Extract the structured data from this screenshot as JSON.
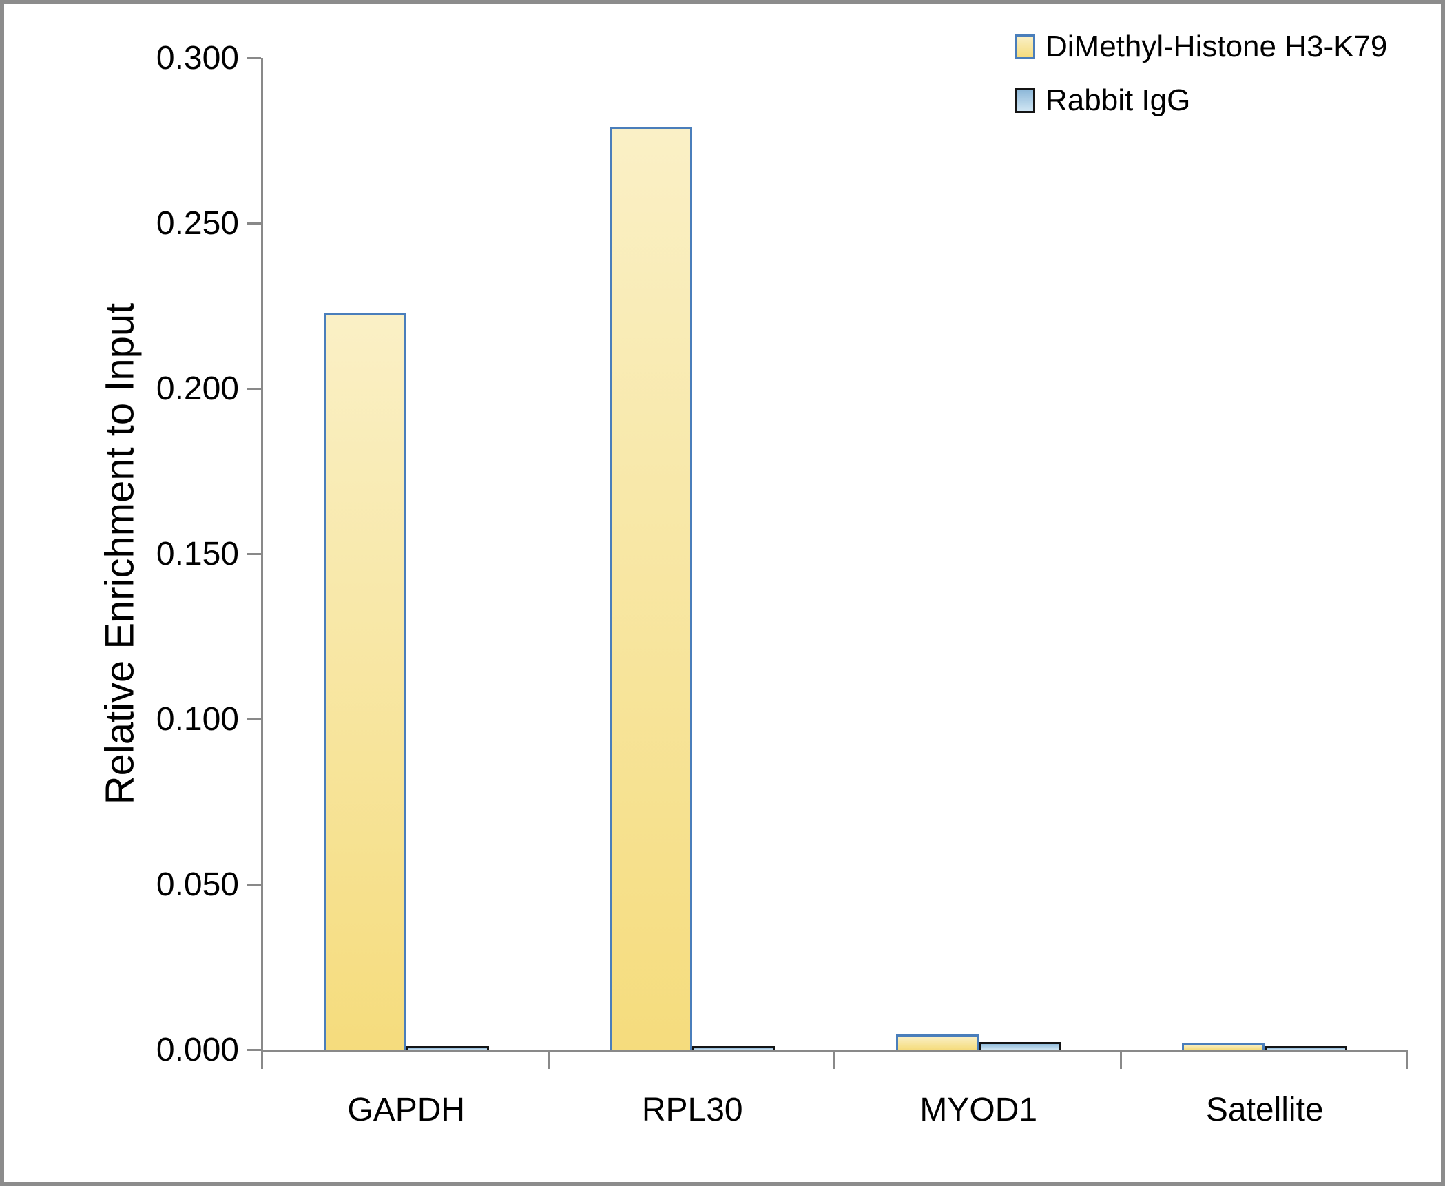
{
  "chart_data": {
    "type": "bar",
    "title": "",
    "xlabel": "",
    "ylabel": "Relative Enrichment to Input",
    "categories": [
      "GAPDH",
      "RPL30",
      "MYOD1",
      "Satellite"
    ],
    "series": [
      {
        "name": "DiMethyl-Histone H3-K79",
        "values": [
          0.223,
          0.279,
          0.0045,
          0.002
        ],
        "fill_top": "#faf0c6",
        "fill_bottom": "#f5dc7d",
        "border": "#4a7ebb"
      },
      {
        "name": "Rabbit IgG",
        "values": [
          0.001,
          0.001,
          0.0023,
          0.001
        ],
        "fill_top": "#8fb9d9",
        "fill_bottom": "#cfe5f3",
        "border": "#141414"
      }
    ],
    "ylim": [
      0,
      0.3
    ],
    "yticks": [
      0.0,
      0.05,
      0.1,
      0.15,
      0.2,
      0.25,
      0.3
    ],
    "ytick_labels": [
      "0.000",
      "0.050",
      "0.100",
      "0.150",
      "0.200",
      "0.250",
      "0.300"
    ],
    "grid": false,
    "legend_position": "top-right"
  },
  "colors": {
    "axis": "#898989",
    "frame": "#8c8c8c",
    "background": "#ffffff",
    "text": "#000000"
  }
}
